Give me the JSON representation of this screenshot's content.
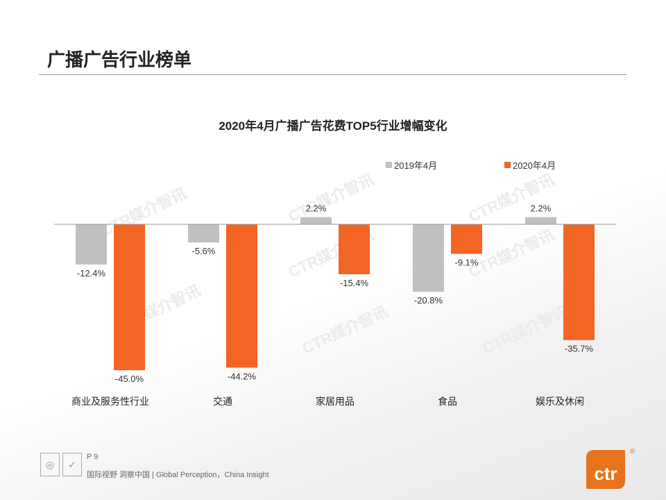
{
  "page": {
    "title": "广播广告行业榜单",
    "page_number": "P 9",
    "slogan": "国际视野  洞察中国 |  Global Perception，China Insight",
    "logo_text": "ctr",
    "watermark": "CTR媒介智讯"
  },
  "colors": {
    "series_2019": "#c0c0c0",
    "series_2020": "#f26522",
    "accent": "#e6731e"
  },
  "chart_data": {
    "type": "bar",
    "title": "2020年4月广播广告花费TOP5行业增幅变化",
    "categories": [
      "商业及服务性行业",
      "交通",
      "家居用品",
      "食品",
      "娱乐及休闲"
    ],
    "series": [
      {
        "name": "2019年4月",
        "values": [
          -12.4,
          -5.6,
          2.2,
          -20.8,
          2.2
        ],
        "labels": [
          "-12.4%",
          "-5.6%",
          "2.2%",
          "-20.8%",
          "2.2%"
        ]
      },
      {
        "name": "2020年4月",
        "values": [
          -45.0,
          -44.2,
          -15.4,
          -9.1,
          -35.7
        ],
        "labels": [
          "-45.0%",
          "-44.2%",
          "-15.4%",
          "-9.1%",
          "-35.7%"
        ]
      }
    ],
    "unit": "%",
    "legend": "top-right",
    "grid": false
  }
}
